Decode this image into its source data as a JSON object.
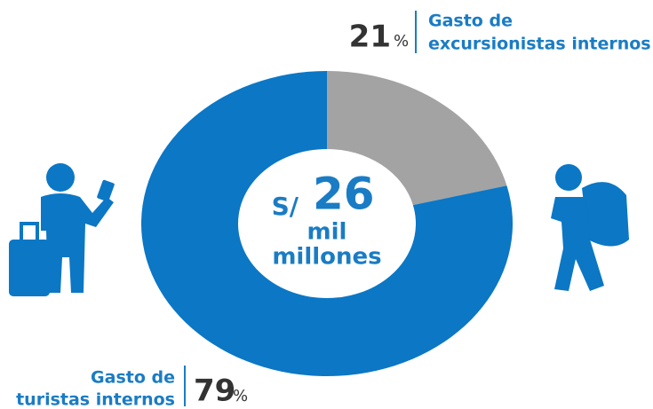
{
  "chart_data": {
    "type": "pie",
    "categories": [
      [
        "Gasto de",
        "excursionistas internos"
      ],
      [
        "Gasto de",
        "turistas internos"
      ]
    ],
    "values": [
      21,
      79
    ],
    "unit": "%",
    "colors": [
      "#a3a3a3",
      "#0b77c5"
    ],
    "center": {
      "prefix": "S/",
      "total": 26,
      "lines": [
        "mil",
        "millones"
      ]
    }
  }
}
